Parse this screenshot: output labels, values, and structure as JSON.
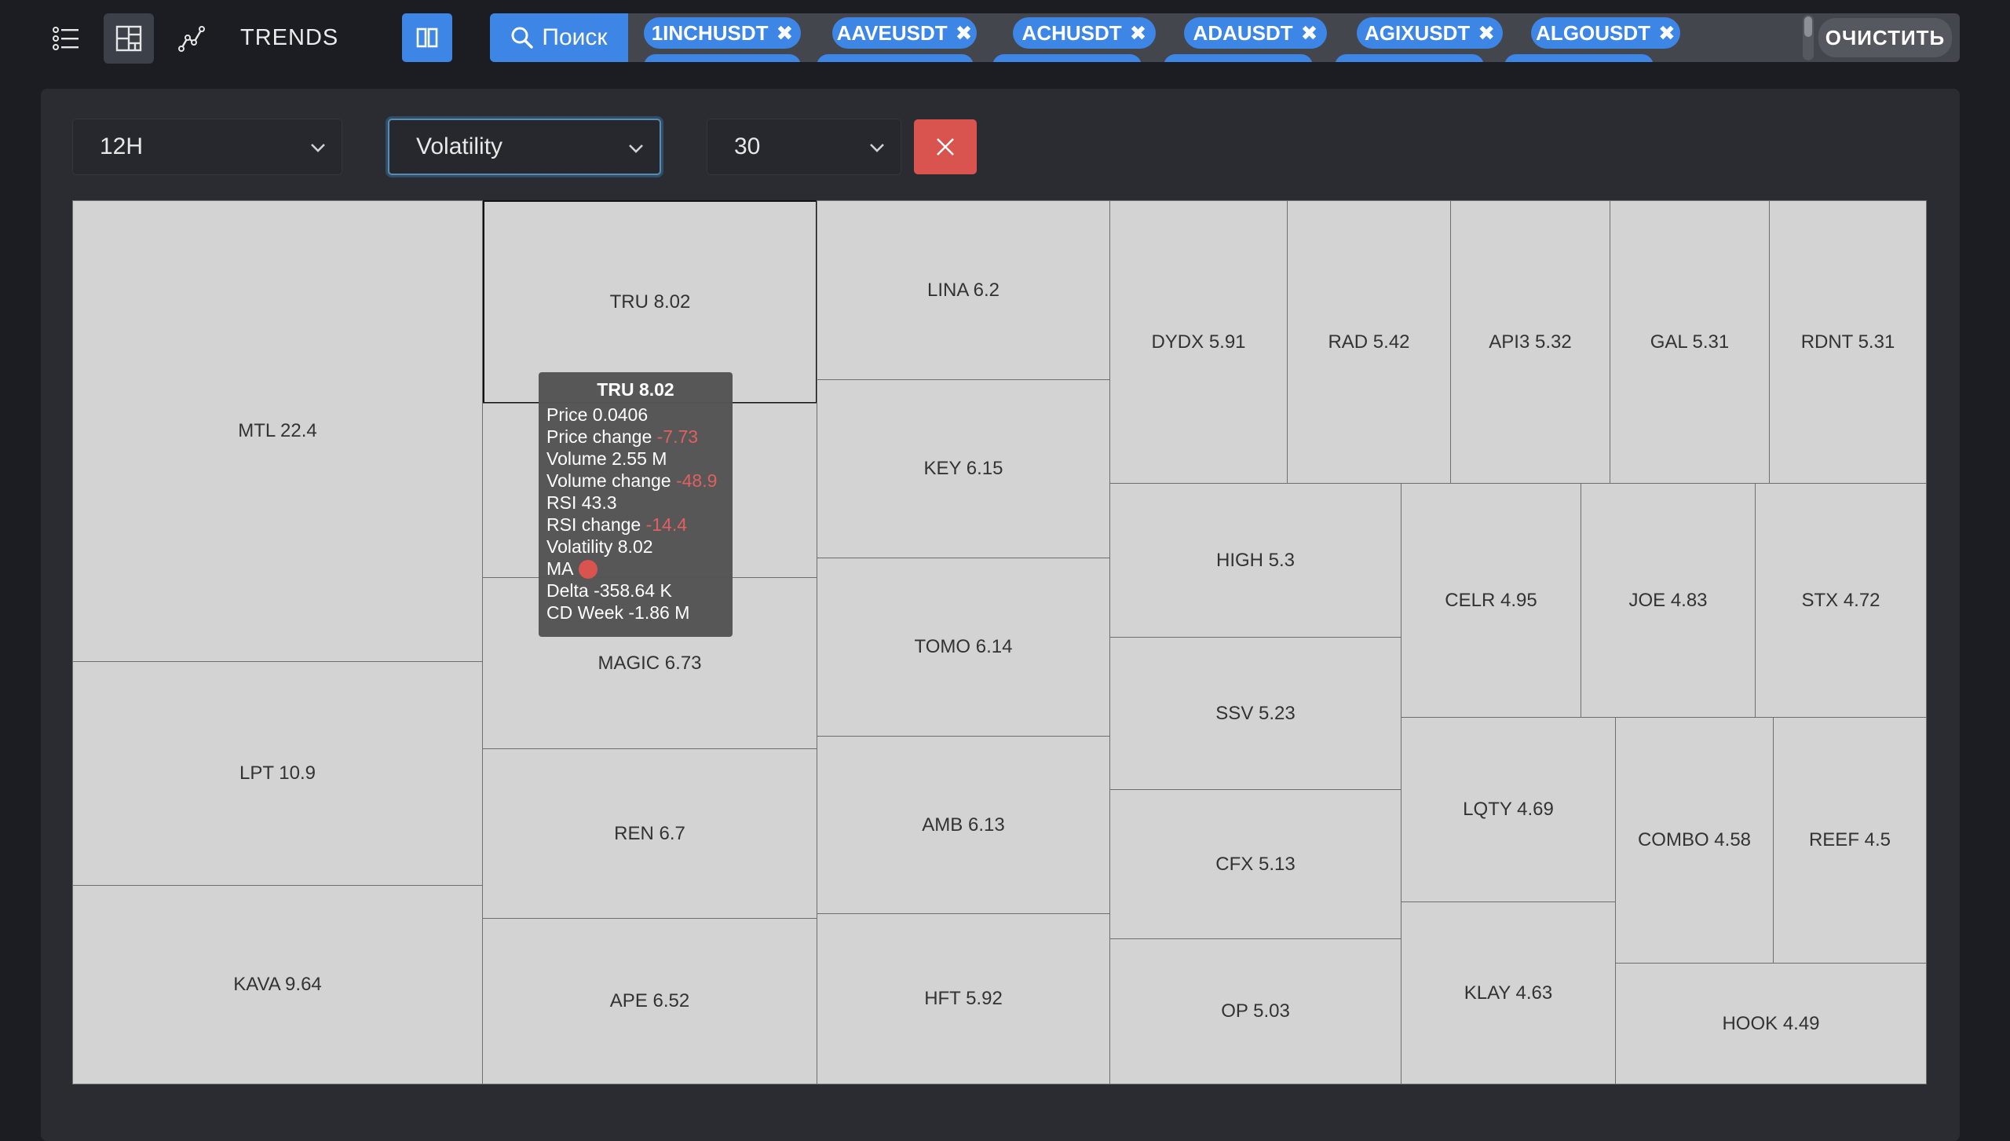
{
  "app": {
    "brand": "TRENDS",
    "search_label": "Поиск",
    "clear_label": "ОЧИСТИТЬ",
    "tags": [
      "1INCHUSDT",
      "AAVEUSDT",
      "ACHUSDT",
      "ADAUSDT",
      "AGIXUSDT",
      "ALGOUSDT"
    ]
  },
  "filters": {
    "timeframe": "12H",
    "metric": "Volatility",
    "count": "30"
  },
  "treemap": {
    "cells": [
      {
        "label": "MTL 22.4"
      },
      {
        "label": "LPT 10.9"
      },
      {
        "label": "KAVA 9.64"
      },
      {
        "label": "TRU 8.02"
      },
      {
        "label": "…"
      },
      {
        "label": "MAGIC 6.73"
      },
      {
        "label": "REN 6.7"
      },
      {
        "label": "APE 6.52"
      },
      {
        "label": "LINA 6.2"
      },
      {
        "label": "KEY 6.15"
      },
      {
        "label": "TOMO 6.14"
      },
      {
        "label": "AMB 6.13"
      },
      {
        "label": "HFT 5.92"
      },
      {
        "label": "DYDX 5.91"
      },
      {
        "label": "RAD 5.42"
      },
      {
        "label": "API3 5.32"
      },
      {
        "label": "GAL 5.31"
      },
      {
        "label": "RDNT 5.31"
      },
      {
        "label": "HIGH 5.3"
      },
      {
        "label": "SSV 5.23"
      },
      {
        "label": "CFX 5.13"
      },
      {
        "label": "OP 5.03"
      },
      {
        "label": "CELR 4.95"
      },
      {
        "label": "JOE 4.83"
      },
      {
        "label": "STX 4.72"
      },
      {
        "label": "LQTY 4.69"
      },
      {
        "label": "KLAY 4.63"
      },
      {
        "label": "COMBO 4.58"
      },
      {
        "label": "REEF 4.5"
      },
      {
        "label": "HOOK 4.49"
      }
    ]
  },
  "tooltip": {
    "title": "TRU 8.02",
    "price_label": "Price",
    "price": "0.0406",
    "price_change_label": "Price change",
    "price_change": "-7.73",
    "volume_label": "Volume",
    "volume": "2.55 M",
    "volume_change_label": "Volume change",
    "volume_change": "-48.9",
    "rsi_label": "RSI",
    "rsi": "43.3",
    "rsi_change_label": "RSI change",
    "rsi_change": "-14.4",
    "volatility_label": "Volatility",
    "volatility": "8.02",
    "ma_label": "MA",
    "delta_label": "Delta",
    "delta": "-358.64 K",
    "cd_week_label": "CD Week",
    "cd_week": "-1.86 M"
  },
  "colors": {
    "accent": "#3d86e6",
    "danger": "#d9534f",
    "cell": "#d3d3d3",
    "negative": "#e06060"
  }
}
